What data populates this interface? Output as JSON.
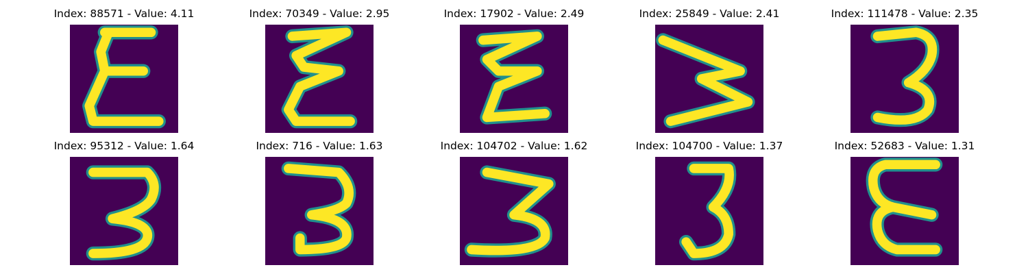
{
  "colors": {
    "background": "#440154",
    "stroke": "#fde725",
    "edge": "#21908d"
  },
  "panels": [
    {
      "title": "Index: 88571 - Value: 4.11",
      "glyph": "epsilon"
    },
    {
      "title": "Index: 70349 - Value: 2.95",
      "glyph": "epsilon"
    },
    {
      "title": "Index: 17902 - Value: 2.49",
      "glyph": "epsilon"
    },
    {
      "title": "Index: 25849 - Value: 2.41",
      "glyph": "sideways-three"
    },
    {
      "title": "Index: 111478 - Value: 2.35",
      "glyph": "three"
    },
    {
      "title": "Index: 95312 - Value: 1.64",
      "glyph": "three"
    },
    {
      "title": "Index: 716 - Value: 1.63",
      "glyph": "three"
    },
    {
      "title": "Index: 104702 - Value: 1.62",
      "glyph": "three"
    },
    {
      "title": "Index: 104700 - Value: 1.37",
      "glyph": "three"
    },
    {
      "title": "Index: 52683 - Value: 1.31",
      "glyph": "epsilon"
    }
  ]
}
